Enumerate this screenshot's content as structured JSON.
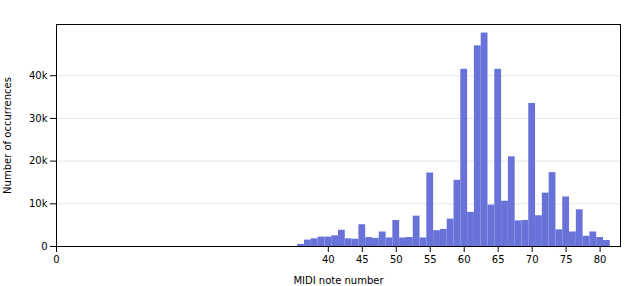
{
  "chart_data": {
    "type": "bar",
    "x": [
      36,
      37,
      38,
      39,
      40,
      41,
      42,
      43,
      44,
      45,
      46,
      47,
      48,
      49,
      50,
      51,
      52,
      53,
      54,
      55,
      56,
      57,
      58,
      59,
      60,
      61,
      62,
      63,
      64,
      65,
      66,
      67,
      68,
      69,
      70,
      71,
      72,
      73,
      74,
      75,
      76,
      77,
      78,
      79,
      80,
      81
    ],
    "values": [
      500,
      1500,
      1800,
      2200,
      2200,
      2500,
      3800,
      1800,
      1700,
      5100,
      2100,
      1900,
      3400,
      2000,
      6100,
      2000,
      2100,
      7100,
      2000,
      17200,
      3700,
      4000,
      6400,
      15500,
      41500,
      8000,
      47000,
      50000,
      9700,
      41500,
      10600,
      21000,
      6000,
      6100,
      33500,
      7200,
      12500,
      17300,
      3900,
      11600,
      3400,
      8600,
      2400,
      3400,
      2100,
      1400
    ],
    "color": "#6872d8",
    "xlabel": "MIDI note number",
    "ylabel": "Number of occurrences",
    "xlim": [
      0,
      83
    ],
    "ylim": [
      0,
      52000
    ],
    "xticks": [
      0,
      40,
      45,
      50,
      55,
      60,
      65,
      70,
      75,
      80
    ],
    "yticks": [
      0,
      {
        "value": 10000,
        "label": "10k"
      },
      {
        "value": 20000,
        "label": "20k"
      },
      {
        "value": 30000,
        "label": "30k"
      },
      {
        "value": 40000,
        "label": "40k"
      }
    ],
    "grid": true
  }
}
